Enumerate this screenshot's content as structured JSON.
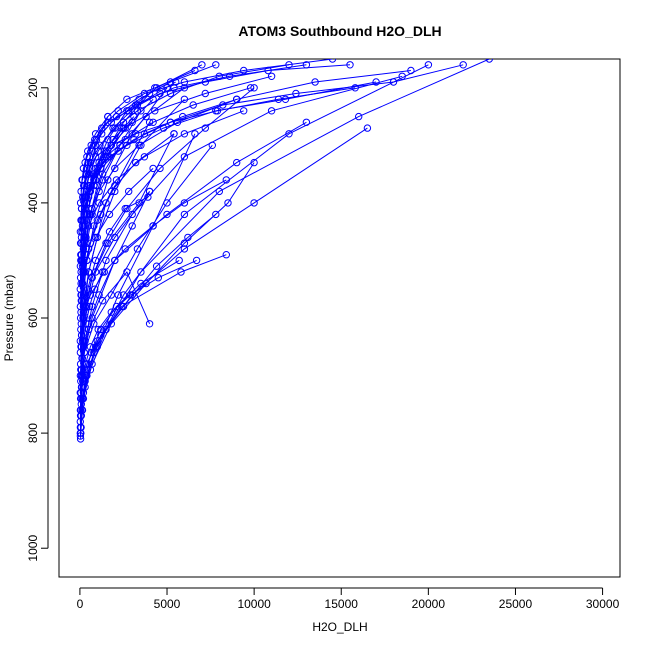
{
  "chart_data": {
    "type": "line",
    "title": "ATOM3 Southbound H2O_DLH",
    "xlabel": "H2O_DLH",
    "ylabel": "Pressure (mbar)",
    "xlim": [
      -1200,
      31000
    ],
    "ylim": [
      150,
      1050
    ],
    "y_reversed": true,
    "x_ticks": [
      "0",
      "5000",
      "10000",
      "15000",
      "20000",
      "25000",
      "30000"
    ],
    "y_ticks": [
      "200",
      "400",
      "600",
      "800",
      "1000"
    ],
    "x_tick_values": [
      0,
      5000,
      10000,
      15000,
      20000,
      25000,
      30000
    ],
    "y_tick_values": [
      200,
      400,
      600,
      800,
      1000
    ],
    "series_color": "#0000ff",
    "grid": false,
    "marker": "open-circle",
    "series": [
      {
        "x": [
          40,
          60,
          120,
          300,
          800,
          2500,
          6000,
          12000,
          20000
        ],
        "y": [
          810,
          790,
          760,
          720,
          660,
          560,
          420,
          280,
          160
        ]
      },
      {
        "x": [
          30,
          80,
          200,
          600,
          1500,
          3500,
          8000,
          16000,
          23500
        ],
        "y": [
          805,
          770,
          730,
          690,
          620,
          520,
          380,
          250,
          150
        ]
      },
      {
        "x": [
          50,
          150,
          400,
          1000,
          2200,
          4200,
          6600
        ],
        "y": [
          800,
          760,
          700,
          650,
          560,
          440,
          280
        ]
      },
      {
        "x": [
          20,
          40,
          100,
          200,
          500,
          1500,
          4000
        ],
        "y": [
          780,
          740,
          690,
          600,
          520,
          400,
          260
        ]
      },
      {
        "x": [
          60,
          200,
          700,
          1800,
          3800,
          6000,
          8500,
          10000
        ],
        "y": [
          790,
          740,
          680,
          610,
          540,
          470,
          400,
          330
        ]
      },
      {
        "x": [
          30,
          90,
          250,
          700,
          2000,
          5000,
          9000,
          13000
        ],
        "y": [
          760,
          720,
          660,
          600,
          500,
          420,
          330,
          260
        ]
      },
      {
        "x": [
          80,
          300,
          900,
          2400,
          5800,
          8400
        ],
        "y": [
          750,
          710,
          650,
          580,
          520,
          490
        ]
      },
      {
        "x": [
          40,
          120,
          400,
          1200,
          3000,
          6000,
          10000,
          16500
        ],
        "y": [
          770,
          720,
          680,
          630,
          560,
          480,
          400,
          270
        ]
      },
      {
        "x": [
          60,
          150,
          300,
          700,
          1500,
          3000,
          6000,
          11000,
          18500
        ],
        "y": [
          740,
          700,
          640,
          580,
          500,
          420,
          320,
          240,
          180
        ]
      },
      {
        "x": [
          20,
          50,
          150,
          400,
          900,
          2000,
          4000
        ],
        "y": [
          730,
          690,
          640,
          580,
          520,
          460,
          380
        ]
      },
      {
        "x": [
          100,
          400,
          1000,
          2500,
          4400,
          6200,
          7800
        ],
        "y": [
          720,
          680,
          640,
          580,
          510,
          460,
          420
        ]
      },
      {
        "x": [
          50,
          250,
          800,
          1800,
          3300,
          5000,
          7600
        ],
        "y": [
          710,
          660,
          610,
          560,
          480,
          400,
          300
        ]
      },
      {
        "x": [
          30,
          100,
          300,
          700,
          1600,
          3400,
          5400
        ],
        "y": [
          700,
          650,
          590,
          530,
          470,
          400,
          280
        ]
      },
      {
        "x": [
          80,
          220,
          500,
          1100,
          2000,
          3000,
          4000
        ],
        "y": [
          690,
          650,
          610,
          560,
          500,
          440,
          380
        ]
      },
      {
        "x": [
          40,
          100,
          200,
          500,
          1000,
          2000,
          3500,
          6000
        ],
        "y": [
          680,
          630,
          580,
          520,
          460,
          380,
          300,
          220
        ]
      },
      {
        "x": [
          120,
          500,
          1300,
          2700,
          4000
        ],
        "y": [
          670,
          620,
          570,
          520,
          610
        ]
      },
      {
        "x": [
          30,
          80,
          200,
          400,
          800,
          1600,
          3000,
          5000
        ],
        "y": [
          660,
          610,
          560,
          500,
          440,
          360,
          280,
          200
        ]
      },
      {
        "x": [
          60,
          180,
          450,
          900,
          1700,
          2600,
          3900
        ],
        "y": [
          650,
          600,
          550,
          500,
          450,
          410,
          390
        ]
      },
      {
        "x": [
          20,
          60,
          150,
          350,
          700,
          1300,
          2300,
          3500
        ],
        "y": [
          640,
          590,
          540,
          480,
          420,
          360,
          300,
          240
        ]
      },
      {
        "x": [
          100,
          300,
          700,
          1500,
          2700,
          4600,
          7200,
          10000
        ],
        "y": [
          630,
          580,
          530,
          470,
          410,
          340,
          270,
          200
        ]
      },
      {
        "x": [
          50,
          120,
          280,
          600,
          1200,
          2000
        ],
        "y": [
          620,
          570,
          520,
          470,
          420,
          370
        ]
      },
      {
        "x": [
          40,
          90,
          180,
          350,
          600,
          1000,
          1600,
          2400
        ],
        "y": [
          600,
          560,
          520,
          470,
          420,
          370,
          320,
          270
        ]
      },
      {
        "x": [
          200,
          600,
          1400,
          2600,
          4200,
          6000,
          8400
        ],
        "y": [
          590,
          560,
          520,
          480,
          440,
          400,
          360
        ]
      },
      {
        "x": [
          30,
          70,
          150,
          300,
          500,
          900,
          1500,
          2500,
          4000
        ],
        "y": [
          580,
          540,
          500,
          460,
          410,
          360,
          310,
          260,
          210
        ]
      },
      {
        "x": [
          80,
          220,
          500,
          1000,
          1800,
          3200,
          5400
        ],
        "y": [
          570,
          520,
          480,
          430,
          380,
          330,
          280
        ]
      },
      {
        "x": [
          60,
          150,
          350,
          700,
          1300,
          2300,
          3800,
          6000
        ],
        "y": [
          560,
          510,
          460,
          410,
          350,
          300,
          250,
          200
        ]
      },
      {
        "x": [
          20,
          50,
          120,
          250,
          500,
          900,
          1600
        ],
        "y": [
          550,
          500,
          450,
          400,
          350,
          300,
          250
        ]
      },
      {
        "x": [
          150,
          400,
          900,
          1700,
          2800,
          4200
        ],
        "y": [
          540,
          500,
          460,
          420,
          380,
          340
        ]
      },
      {
        "x": [
          40,
          100,
          250,
          500,
          900,
          1600,
          2700,
          4400,
          7000
        ],
        "y": [
          530,
          490,
          440,
          390,
          340,
          290,
          240,
          200,
          160
        ]
      },
      {
        "x": [
          70,
          180,
          400,
          800,
          1500,
          2600,
          4200
        ],
        "y": [
          520,
          470,
          420,
          370,
          320,
          270,
          220
        ]
      },
      {
        "x": [
          30,
          80,
          180,
          380,
          750,
          1400,
          2500,
          4300,
          7200,
          11000
        ],
        "y": [
          510,
          470,
          430,
          390,
          350,
          310,
          270,
          240,
          210,
          180
        ]
      },
      {
        "x": [
          100,
          250,
          550,
          1100,
          2000,
          3400,
          5600,
          9000
        ],
        "y": [
          500,
          460,
          420,
          380,
          340,
          300,
          260,
          220
        ]
      },
      {
        "x": [
          50,
          130,
          300,
          600,
          1100,
          1900,
          3100
        ],
        "y": [
          490,
          450,
          410,
          370,
          330,
          290,
          250
        ]
      },
      {
        "x": [
          200,
          500,
          1100,
          2100,
          3700,
          6000,
          9400
        ],
        "y": [
          480,
          440,
          400,
          360,
          320,
          280,
          240
        ]
      },
      {
        "x": [
          40,
          110,
          260,
          550,
          1050,
          1900,
          3300,
          5500
        ],
        "y": [
          470,
          430,
          390,
          350,
          310,
          270,
          230,
          190
        ]
      },
      {
        "x": [
          90,
          240,
          520,
          1000,
          1800,
          3000
        ],
        "y": [
          460,
          420,
          380,
          340,
          300,
          260
        ]
      },
      {
        "x": [
          30,
          90,
          220,
          480,
          950,
          1800,
          3200,
          5400,
          8600,
          13000
        ],
        "y": [
          450,
          410,
          370,
          330,
          290,
          260,
          230,
          200,
          180,
          160
        ]
      },
      {
        "x": [
          150,
          380,
          800,
          1500,
          2600,
          4200,
          6500,
          9800
        ],
        "y": [
          440,
          400,
          360,
          320,
          290,
          260,
          230,
          200
        ]
      },
      {
        "x": [
          60,
          160,
          360,
          700,
          1250,
          2100,
          3400,
          5200,
          7800
        ],
        "y": [
          430,
          390,
          350,
          310,
          280,
          250,
          220,
          190,
          160
        ]
      },
      {
        "x": [
          250,
          600,
          1200,
          2200,
          3700,
          5900,
          9000,
          13500,
          19000
        ],
        "y": [
          420,
          380,
          340,
          310,
          280,
          250,
          220,
          190,
          170
        ]
      },
      {
        "x": [
          100,
          280,
          600,
          1150,
          2000,
          3300,
          5200,
          8000,
          12000
        ],
        "y": [
          410,
          370,
          330,
          300,
          270,
          240,
          210,
          180,
          160
        ]
      },
      {
        "x": [
          40,
          120,
          300,
          650,
          1250,
          2200,
          3700,
          6000,
          9400,
          14500
        ],
        "y": [
          400,
          360,
          330,
          300,
          270,
          240,
          210,
          190,
          170,
          150
        ]
      },
      {
        "x": [
          300,
          800,
          1700,
          3100,
          5200,
          8200,
          12400,
          18000,
          22000
        ],
        "y": [
          390,
          350,
          320,
          290,
          260,
          230,
          210,
          190,
          160
        ]
      },
      {
        "x": [
          70,
          200,
          450,
          900,
          1600,
          2700,
          4300,
          6600
        ],
        "y": [
          380,
          340,
          310,
          280,
          250,
          220,
          200,
          170
        ]
      },
      {
        "x": [
          500,
          1300,
          2700,
          4800,
          7800,
          11800,
          17000
        ],
        "y": [
          370,
          330,
          300,
          270,
          240,
          220,
          190
        ]
      },
      {
        "x": [
          150,
          400,
          850,
          1600,
          2800,
          4600,
          7200,
          10800,
          15500
        ],
        "y": [
          360,
          320,
          290,
          260,
          240,
          210,
          190,
          170,
          160
        ]
      },
      {
        "x": [
          20,
          60,
          150,
          330,
          650,
          1200,
          2100,
          3500,
          5700
        ],
        "y": [
          800,
          770,
          740,
          700,
          660,
          620,
          580,
          540,
          500
        ]
      },
      {
        "x": [
          30,
          40,
          60,
          90,
          140,
          220,
          350,
          550,
          850,
          1300
        ],
        "y": [
          790,
          760,
          730,
          700,
          670,
          640,
          610,
          580,
          550,
          520
        ]
      },
      {
        "x": [
          80,
          160,
          320,
          600,
          1050,
          1800,
          2900,
          4500,
          6700
        ],
        "y": [
          740,
          710,
          680,
          650,
          620,
          590,
          560,
          530,
          500
        ]
      },
      {
        "x": [
          400,
          900,
          1800,
          3200,
          5200,
          7900,
          11400,
          15800
        ],
        "y": [
          350,
          320,
          300,
          280,
          260,
          240,
          220,
          200
        ]
      }
    ]
  }
}
